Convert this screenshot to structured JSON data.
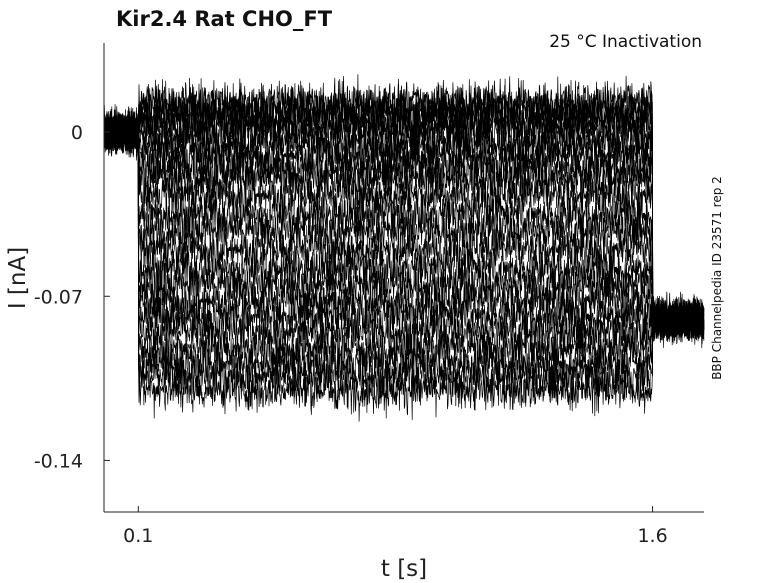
{
  "chart_data": {
    "type": "line",
    "title": "Kir2.4  Rat  CHO_FT",
    "annotation": "25 °C  Inactivation",
    "side_label": "BBP Channelpedia ID 23571 rep 2",
    "xlabel": "t [s]",
    "ylabel": "I [nA]",
    "xlim": [
      0.0,
      1.75
    ],
    "ylim": [
      -0.162,
      0.038
    ],
    "xticks": [
      0.1,
      1.6
    ],
    "xtick_labels": [
      "0.1",
      "1.6"
    ],
    "yticks": [
      0,
      -0.07,
      -0.14
    ],
    "ytick_labels": [
      "0",
      "-0.07",
      "-0.14"
    ],
    "grid": false,
    "legend": "none",
    "trace_color": "#000000",
    "step_window": [
      0.1,
      1.6
    ],
    "baseline_pre": 0.0,
    "post_step_level": -0.08,
    "series_levels": [
      0.013,
      0.01,
      0.007,
      0.004,
      0.0,
      -0.005,
      -0.01,
      -0.015,
      -0.02,
      -0.027,
      -0.035,
      -0.042,
      -0.05,
      -0.058,
      -0.065,
      -0.072,
      -0.078,
      -0.085,
      -0.092,
      -0.098,
      -0.104,
      -0.11
    ],
    "noise_sd": 0.0045
  }
}
